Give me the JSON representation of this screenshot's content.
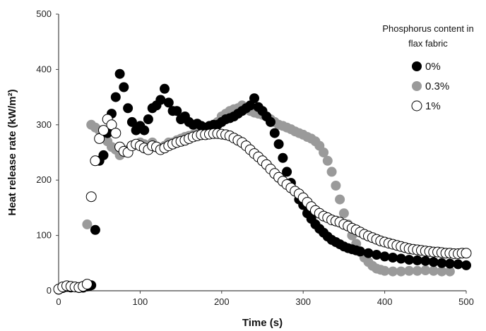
{
  "chart_data": {
    "type": "scatter",
    "title": "",
    "xlabel": "Time (s)",
    "ylabel": "Heat release rate (kW/m²)",
    "xlim": [
      0,
      500
    ],
    "ylim": [
      0,
      500
    ],
    "xticks": [
      0,
      100,
      200,
      300,
      400,
      500
    ],
    "yticks": [
      0,
      100,
      200,
      300,
      400,
      500
    ],
    "grid": false,
    "legend_title": "Phosphorus content in flax fabric",
    "legend_title_lines": [
      "Phosphorus content in",
      "flax fabric"
    ],
    "legend_position": "top-right",
    "series": [
      {
        "name": "0%",
        "marker": "filled-circle",
        "color": "#000000",
        "points": [
          [
            0,
            2
          ],
          [
            5,
            5
          ],
          [
            10,
            7
          ],
          [
            15,
            6
          ],
          [
            20,
            7
          ],
          [
            25,
            5
          ],
          [
            30,
            6
          ],
          [
            35,
            8
          ],
          [
            38,
            9
          ],
          [
            40,
            10
          ],
          [
            45,
            110
          ],
          [
            50,
            235
          ],
          [
            55,
            245
          ],
          [
            60,
            285
          ],
          [
            65,
            320
          ],
          [
            70,
            350
          ],
          [
            75,
            392
          ],
          [
            80,
            368
          ],
          [
            85,
            330
          ],
          [
            90,
            305
          ],
          [
            95,
            290
          ],
          [
            100,
            298
          ],
          [
            105,
            290
          ],
          [
            110,
            310
          ],
          [
            115,
            330
          ],
          [
            120,
            335
          ],
          [
            125,
            345
          ],
          [
            130,
            365
          ],
          [
            135,
            340
          ],
          [
            140,
            325
          ],
          [
            145,
            325
          ],
          [
            150,
            310
          ],
          [
            155,
            315
          ],
          [
            160,
            305
          ],
          [
            165,
            300
          ],
          [
            170,
            302
          ],
          [
            175,
            298
          ],
          [
            180,
            295
          ],
          [
            185,
            298
          ],
          [
            190,
            300
          ],
          [
            195,
            300
          ],
          [
            200,
            305
          ],
          [
            205,
            310
          ],
          [
            210,
            312
          ],
          [
            215,
            315
          ],
          [
            220,
            320
          ],
          [
            225,
            325
          ],
          [
            230,
            330
          ],
          [
            235,
            335
          ],
          [
            240,
            348
          ],
          [
            245,
            332
          ],
          [
            250,
            325
          ],
          [
            255,
            315
          ],
          [
            260,
            305
          ],
          [
            265,
            285
          ],
          [
            270,
            265
          ],
          [
            275,
            240
          ],
          [
            280,
            215
          ],
          [
            285,
            195
          ],
          [
            290,
            180
          ],
          [
            295,
            165
          ],
          [
            300,
            155
          ],
          [
            305,
            140
          ],
          [
            310,
            130
          ],
          [
            315,
            120
          ],
          [
            320,
            112
          ],
          [
            325,
            105
          ],
          [
            330,
            98
          ],
          [
            335,
            92
          ],
          [
            340,
            88
          ],
          [
            345,
            84
          ],
          [
            350,
            80
          ],
          [
            355,
            77
          ],
          [
            360,
            75
          ],
          [
            365,
            73
          ],
          [
            370,
            71
          ],
          [
            380,
            68
          ],
          [
            390,
            65
          ],
          [
            400,
            62
          ],
          [
            410,
            60
          ],
          [
            420,
            58
          ],
          [
            430,
            56
          ],
          [
            440,
            55
          ],
          [
            450,
            54
          ],
          [
            460,
            52
          ],
          [
            470,
            50
          ],
          [
            480,
            49
          ],
          [
            490,
            48
          ],
          [
            500,
            46
          ]
        ]
      },
      {
        "name": "0.3%",
        "marker": "filled-circle",
        "color": "#9a9a9a",
        "points": [
          [
            0,
            2
          ],
          [
            5,
            6
          ],
          [
            10,
            7
          ],
          [
            15,
            6
          ],
          [
            20,
            6
          ],
          [
            25,
            5
          ],
          [
            30,
            5
          ],
          [
            35,
            120
          ],
          [
            40,
            300
          ],
          [
            45,
            295
          ],
          [
            50,
            290
          ],
          [
            55,
            280
          ],
          [
            60,
            270
          ],
          [
            65,
            260
          ],
          [
            70,
            255
          ],
          [
            75,
            245
          ],
          [
            80,
            250
          ],
          [
            85,
            255
          ],
          [
            90,
            262
          ],
          [
            95,
            265
          ],
          [
            100,
            268
          ],
          [
            105,
            265
          ],
          [
            110,
            262
          ],
          [
            115,
            268
          ],
          [
            120,
            260
          ],
          [
            125,
            255
          ],
          [
            130,
            262
          ],
          [
            135,
            268
          ],
          [
            140,
            268
          ],
          [
            145,
            272
          ],
          [
            150,
            275
          ],
          [
            155,
            278
          ],
          [
            160,
            280
          ],
          [
            165,
            282
          ],
          [
            170,
            285
          ],
          [
            175,
            288
          ],
          [
            180,
            290
          ],
          [
            185,
            295
          ],
          [
            190,
            300
          ],
          [
            195,
            305
          ],
          [
            200,
            315
          ],
          [
            205,
            320
          ],
          [
            210,
            325
          ],
          [
            215,
            328
          ],
          [
            220,
            330
          ],
          [
            225,
            335
          ],
          [
            230,
            330
          ],
          [
            235,
            325
          ],
          [
            240,
            322
          ],
          [
            245,
            320
          ],
          [
            250,
            318
          ],
          [
            255,
            315
          ],
          [
            260,
            310
          ],
          [
            265,
            305
          ],
          [
            270,
            300
          ],
          [
            275,
            298
          ],
          [
            280,
            295
          ],
          [
            285,
            292
          ],
          [
            290,
            288
          ],
          [
            295,
            285
          ],
          [
            300,
            282
          ],
          [
            305,
            278
          ],
          [
            310,
            275
          ],
          [
            315,
            270
          ],
          [
            320,
            262
          ],
          [
            325,
            250
          ],
          [
            330,
            235
          ],
          [
            335,
            215
          ],
          [
            340,
            190
          ],
          [
            345,
            165
          ],
          [
            350,
            140
          ],
          [
            355,
            120
          ],
          [
            360,
            100
          ],
          [
            365,
            85
          ],
          [
            370,
            70
          ],
          [
            375,
            60
          ],
          [
            380,
            52
          ],
          [
            385,
            45
          ],
          [
            390,
            40
          ],
          [
            395,
            38
          ],
          [
            400,
            36
          ],
          [
            410,
            35
          ],
          [
            420,
            35
          ],
          [
            430,
            36
          ],
          [
            440,
            36
          ],
          [
            450,
            37
          ],
          [
            460,
            36
          ],
          [
            470,
            35
          ],
          [
            480,
            35
          ]
        ]
      },
      {
        "name": "1%",
        "marker": "open-circle",
        "color": "#000000",
        "points": [
          [
            0,
            3
          ],
          [
            5,
            7
          ],
          [
            10,
            9
          ],
          [
            15,
            8
          ],
          [
            20,
            7
          ],
          [
            25,
            6
          ],
          [
            30,
            8
          ],
          [
            35,
            12
          ],
          [
            40,
            170
          ],
          [
            45,
            235
          ],
          [
            50,
            275
          ],
          [
            55,
            290
          ],
          [
            60,
            310
          ],
          [
            65,
            300
          ],
          [
            70,
            285
          ],
          [
            75,
            260
          ],
          [
            80,
            252
          ],
          [
            85,
            250
          ],
          [
            90,
            262
          ],
          [
            95,
            265
          ],
          [
            100,
            262
          ],
          [
            105,
            258
          ],
          [
            110,
            255
          ],
          [
            115,
            262
          ],
          [
            120,
            260
          ],
          [
            125,
            255
          ],
          [
            130,
            258
          ],
          [
            135,
            262
          ],
          [
            140,
            265
          ],
          [
            145,
            268
          ],
          [
            150,
            270
          ],
          [
            155,
            272
          ],
          [
            160,
            275
          ],
          [
            165,
            278
          ],
          [
            170,
            280
          ],
          [
            175,
            282
          ],
          [
            180,
            282
          ],
          [
            185,
            283
          ],
          [
            190,
            284
          ],
          [
            195,
            284
          ],
          [
            200,
            283
          ],
          [
            205,
            282
          ],
          [
            210,
            280
          ],
          [
            215,
            276
          ],
          [
            220,
            272
          ],
          [
            225,
            268
          ],
          [
            230,
            262
          ],
          [
            235,
            255
          ],
          [
            240,
            248
          ],
          [
            245,
            242
          ],
          [
            250,
            235
          ],
          [
            255,
            228
          ],
          [
            260,
            220
          ],
          [
            265,
            212
          ],
          [
            270,
            205
          ],
          [
            275,
            198
          ],
          [
            280,
            192
          ],
          [
            285,
            186
          ],
          [
            290,
            180
          ],
          [
            295,
            175
          ],
          [
            300,
            168
          ],
          [
            305,
            160
          ],
          [
            310,
            152
          ],
          [
            315,
            145
          ],
          [
            320,
            140
          ],
          [
            325,
            135
          ],
          [
            330,
            132
          ],
          [
            335,
            128
          ],
          [
            340,
            126
          ],
          [
            345,
            124
          ],
          [
            350,
            120
          ],
          [
            355,
            117
          ],
          [
            360,
            113
          ],
          [
            365,
            110
          ],
          [
            370,
            106
          ],
          [
            375,
            102
          ],
          [
            380,
            99
          ],
          [
            385,
            96
          ],
          [
            390,
            93
          ],
          [
            395,
            90
          ],
          [
            400,
            88
          ],
          [
            405,
            86
          ],
          [
            410,
            84
          ],
          [
            415,
            82
          ],
          [
            420,
            80
          ],
          [
            425,
            78
          ],
          [
            430,
            76
          ],
          [
            435,
            75
          ],
          [
            440,
            74
          ],
          [
            445,
            73
          ],
          [
            450,
            72
          ],
          [
            455,
            71
          ],
          [
            460,
            70
          ],
          [
            465,
            70
          ],
          [
            470,
            69
          ],
          [
            475,
            68
          ],
          [
            480,
            68
          ],
          [
            485,
            67
          ],
          [
            490,
            67
          ],
          [
            495,
            68
          ],
          [
            500,
            68
          ]
        ]
      }
    ]
  }
}
